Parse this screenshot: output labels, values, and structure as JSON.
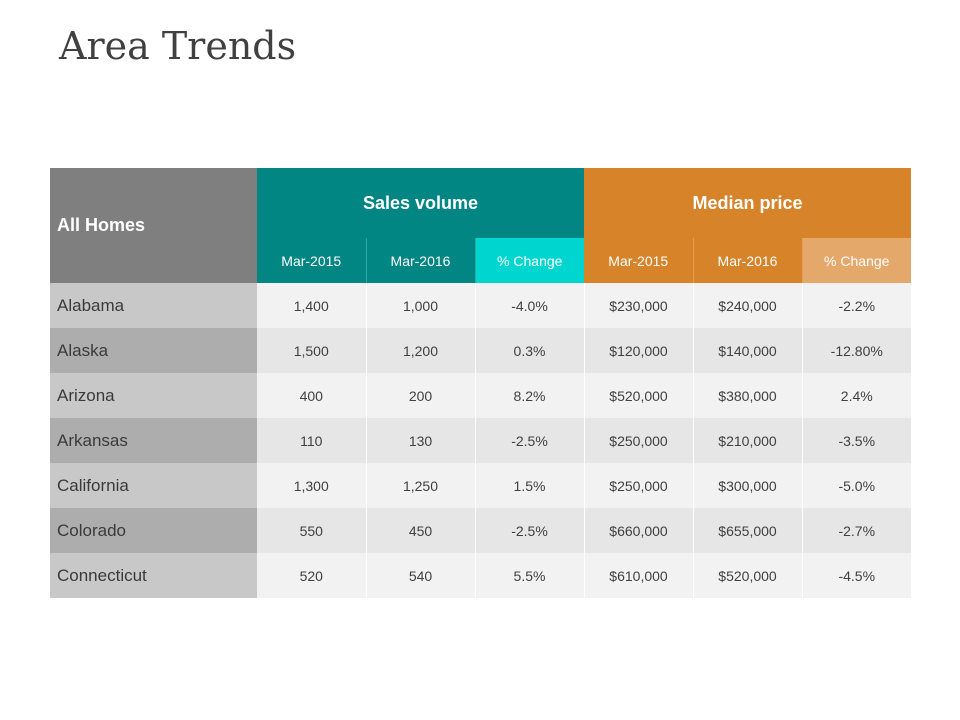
{
  "title": "Area Trends",
  "table": {
    "corner_label": "All Homes",
    "group_sales": "Sales volume",
    "group_price": "Median price",
    "subheaders": [
      "Mar-2015",
      "Mar-2016",
      "% Change",
      "Mar-2015",
      "Mar-2016",
      "% Change"
    ],
    "rows": [
      {
        "state": "Alabama",
        "values": [
          "1,400",
          "1,000",
          "-4.0%",
          "$230,000",
          "$240,000",
          "-2.2%"
        ]
      },
      {
        "state": "Alaska",
        "values": [
          "1,500",
          "1,200",
          "0.3%",
          "$120,000",
          "$140,000",
          "-12.80%"
        ]
      },
      {
        "state": "Arizona",
        "values": [
          "400",
          "200",
          "8.2%",
          "$520,000",
          "$380,000",
          "2.4%"
        ]
      },
      {
        "state": "Arkansas",
        "values": [
          "110",
          "130",
          "-2.5%",
          "$250,000",
          "$210,000",
          "-3.5%"
        ]
      },
      {
        "state": "California",
        "values": [
          "1,300",
          "1,250",
          "1.5%",
          "$250,000",
          "$300,000",
          "-5.0%"
        ]
      },
      {
        "state": "Colorado",
        "values": [
          "550",
          "450",
          "-2.5%",
          "$660,000",
          "$655,000",
          "-2.7%"
        ]
      },
      {
        "state": "Connecticut",
        "values": [
          "520",
          "540",
          "5.5%",
          "$610,000",
          "$520,000",
          "-4.5%"
        ]
      }
    ]
  },
  "colors": {
    "sales_header": "#018683",
    "sales_change_header": "#00d5d0",
    "price_header": "#d6832a",
    "price_change_header": "#e5a86b",
    "corner_header": "#7f7f7f"
  }
}
